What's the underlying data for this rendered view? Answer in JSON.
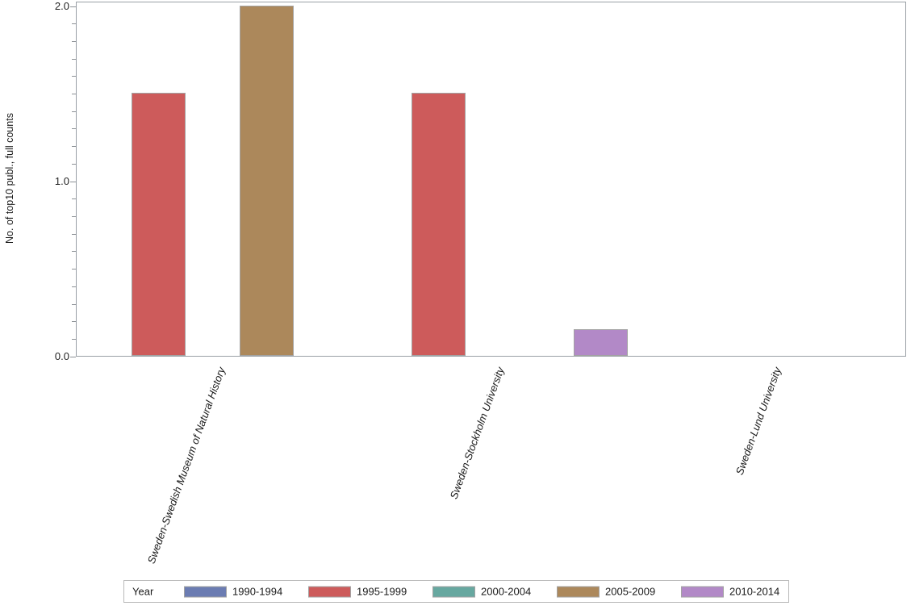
{
  "chart_data": {
    "type": "bar",
    "title": "",
    "xlabel": "",
    "ylabel": "No. of top10 publ., full counts",
    "categories": [
      "Sweden-Swedish Museum of Natural History",
      "Sweden-Stockholm University",
      "Sweden-Lund University"
    ],
    "series": [
      {
        "name": "1990-1994",
        "color": "#6B7CB2",
        "values": [
          0,
          0,
          0
        ]
      },
      {
        "name": "1995-1999",
        "color": "#CD5B5B",
        "values": [
          1.5,
          1.5,
          0
        ]
      },
      {
        "name": "2000-2004",
        "color": "#67A8A0",
        "values": [
          0,
          0,
          0
        ]
      },
      {
        "name": "2005-2009",
        "color": "#AC885B",
        "values": [
          2.0,
          0,
          0
        ]
      },
      {
        "name": "2010-2014",
        "color": "#B289C7",
        "values": [
          0,
          0.15,
          0
        ]
      }
    ],
    "ylim": [
      0,
      2.0
    ],
    "yticks": [
      0.0,
      1.0,
      2.0
    ],
    "ytick_labels": [
      "0.0",
      "1.0",
      "2.0"
    ],
    "minor_tick_step": 0.1,
    "grid": false,
    "legend_title": "Year",
    "legend_position": "bottom",
    "axis_color": "#9aa0a6",
    "bar_border_color": "#a3a3a3"
  }
}
